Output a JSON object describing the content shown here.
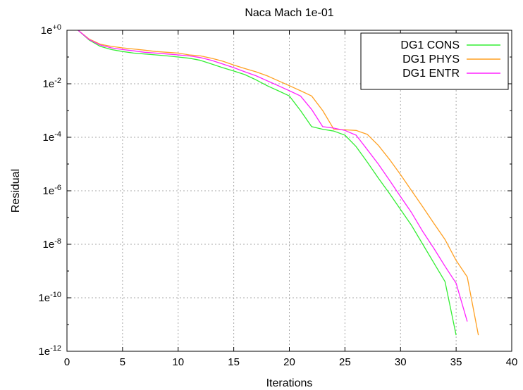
{
  "chart_data": {
    "type": "line",
    "title": "Naca Mach 1e-01",
    "xlabel": "Iterations",
    "ylabel": "Residual",
    "xlim": [
      0,
      40
    ],
    "ylim": [
      1e-12,
      1
    ],
    "yscale": "log",
    "grid": true,
    "legend_position": "top-right",
    "x_ticks": [
      "0",
      "5",
      "10",
      "15",
      "20",
      "25",
      "30",
      "35",
      "40"
    ],
    "y_ticks": [
      {
        "base": "1e",
        "exp": "+0",
        "value": 1
      },
      {
        "base": "1e",
        "exp": "-2",
        "value": 0.01
      },
      {
        "base": "1e",
        "exp": "-4",
        "value": 0.0001
      },
      {
        "base": "1e",
        "exp": "-6",
        "value": 1e-06
      },
      {
        "base": "1e",
        "exp": "-8",
        "value": 1e-08
      },
      {
        "base": "1e",
        "exp": "-10",
        "value": 1e-10
      },
      {
        "base": "1e",
        "exp": "-12",
        "value": 1e-12
      }
    ],
    "series": [
      {
        "name": "DG1 CONS",
        "color": "#33ee33",
        "x": [
          1,
          2,
          3,
          4,
          5,
          6,
          7,
          8,
          9,
          10,
          11,
          12,
          13,
          14,
          15,
          16,
          17,
          18,
          19,
          20,
          21,
          22,
          23,
          24,
          25,
          26,
          27,
          28,
          29,
          30,
          31,
          32,
          33,
          34,
          35
        ],
        "y": [
          1.0,
          0.43,
          0.25,
          0.19,
          0.16,
          0.14,
          0.13,
          0.12,
          0.11,
          0.1,
          0.09,
          0.075,
          0.055,
          0.04,
          0.03,
          0.022,
          0.014,
          0.0085,
          0.0055,
          0.0035,
          0.001,
          0.00025,
          0.0002,
          0.00017,
          0.00012,
          4.5e-05,
          1.2e-05,
          3e-06,
          8e-07,
          2e-07,
          5e-08,
          1e-08,
          2e-09,
          4e-10,
          4e-12
        ]
      },
      {
        "name": "DG1 PHYS",
        "color": "#ffa022",
        "x": [
          1,
          2,
          3,
          4,
          5,
          6,
          7,
          8,
          9,
          10,
          11,
          12,
          13,
          14,
          15,
          16,
          17,
          18,
          19,
          20,
          21,
          22,
          23,
          24,
          25,
          26,
          27,
          28,
          29,
          30,
          31,
          32,
          33,
          34,
          35,
          36,
          37
        ],
        "y": [
          1.0,
          0.47,
          0.3,
          0.25,
          0.22,
          0.2,
          0.18,
          0.16,
          0.15,
          0.14,
          0.12,
          0.11,
          0.09,
          0.07,
          0.05,
          0.037,
          0.028,
          0.02,
          0.013,
          0.0085,
          0.0055,
          0.0035,
          0.001,
          0.0002,
          0.00019,
          0.00018,
          0.00013,
          5e-05,
          1.5e-05,
          4e-06,
          1e-06,
          2.5e-07,
          6e-08,
          1.5e-08,
          2.5e-09,
          6e-10,
          4e-12
        ]
      },
      {
        "name": "DG1 ENTR",
        "color": "#ff22ff",
        "x": [
          1,
          2,
          3,
          4,
          5,
          6,
          7,
          8,
          9,
          10,
          11,
          12,
          13,
          14,
          15,
          16,
          17,
          18,
          19,
          20,
          21,
          22,
          23,
          24,
          25,
          26,
          27,
          28,
          29,
          30,
          31,
          32,
          33,
          34,
          35,
          36
        ],
        "y": [
          1.0,
          0.45,
          0.28,
          0.22,
          0.19,
          0.17,
          0.15,
          0.14,
          0.13,
          0.12,
          0.11,
          0.095,
          0.075,
          0.055,
          0.04,
          0.028,
          0.02,
          0.013,
          0.0085,
          0.0055,
          0.0035,
          0.0011,
          0.00025,
          0.00022,
          0.00018,
          0.00012,
          3.5e-05,
          1e-05,
          2.5e-06,
          6e-07,
          1.5e-07,
          3e-08,
          7e-09,
          1.5e-09,
          3.5e-10,
          1.3e-11
        ]
      }
    ]
  }
}
